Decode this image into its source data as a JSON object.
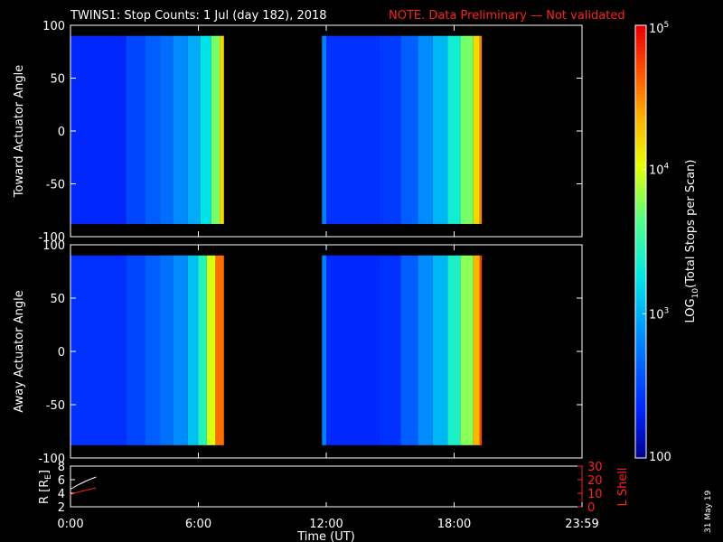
{
  "title": {
    "main": "TWINS1: Stop Counts:  1 Jul (day 182), 2018",
    "note": "NOTE. Data Preliminary — Not validated",
    "note_color": "#ff2020"
  },
  "colorbar": {
    "label_parts": [
      "LOG",
      "10",
      "(Total Stops per Scan)"
    ],
    "ticks": [
      {
        "base": "10",
        "exp": "5",
        "value": 100000
      },
      {
        "base": "10",
        "exp": "4",
        "value": 10000
      },
      {
        "base": "10",
        "exp": "3",
        "value": 1000
      },
      {
        "base": "100",
        "exp": "",
        "value": 100
      }
    ],
    "scale": "log",
    "range": [
      100,
      100000
    ]
  },
  "footer": {
    "date_stamp": "31 May 19"
  },
  "chart_data": [
    {
      "type": "heatmap",
      "title": "",
      "ylabel": "Toward Actuator Angle",
      "xlabel": "",
      "xlim": [
        0,
        24
      ],
      "ylim": [
        -100,
        100
      ],
      "y_ticks": [
        -100,
        -50,
        0,
        50,
        100
      ],
      "data_extent_y": [
        -88,
        90
      ],
      "segments": [
        {
          "t_start": 0.0,
          "t_end": 7.2,
          "columns": [
            {
              "t": 0.0,
              "log10": 2.35
            },
            {
              "t": 2.6,
              "log10": 2.5
            },
            {
              "t": 3.5,
              "log10": 2.62
            },
            {
              "t": 4.2,
              "log10": 2.7
            },
            {
              "t": 4.8,
              "log10": 2.85
            },
            {
              "t": 5.5,
              "log10": 3.0
            },
            {
              "t": 6.1,
              "log10": 3.25
            },
            {
              "t": 6.6,
              "log10": 3.75
            },
            {
              "t": 7.0,
              "log10": 4.2
            }
          ]
        },
        {
          "t_start": 11.8,
          "t_end": 19.3,
          "columns": [
            {
              "t": 11.8,
              "log10": 2.8
            },
            {
              "t": 12.0,
              "log10": 2.4
            },
            {
              "t": 14.5,
              "log10": 2.45
            },
            {
              "t": 15.5,
              "log10": 2.62
            },
            {
              "t": 16.3,
              "log10": 2.85
            },
            {
              "t": 17.0,
              "log10": 3.05
            },
            {
              "t": 17.7,
              "log10": 3.35
            },
            {
              "t": 18.3,
              "log10": 3.75
            },
            {
              "t": 18.9,
              "log10": 4.2
            },
            {
              "t": 19.2,
              "log10": 4.55
            }
          ]
        }
      ]
    },
    {
      "type": "heatmap",
      "title": "",
      "ylabel": "Away Actuator Angle",
      "xlabel": "",
      "xlim": [
        0,
        24
      ],
      "ylim": [
        -100,
        100
      ],
      "y_ticks": [
        -100,
        -50,
        0,
        50,
        100
      ],
      "data_extent_y": [
        -88,
        90
      ],
      "segments": [
        {
          "t_start": 0.0,
          "t_end": 7.2,
          "columns": [
            {
              "t": 0.0,
              "log10": 2.4
            },
            {
              "t": 2.6,
              "log10": 2.5
            },
            {
              "t": 3.5,
              "log10": 2.62
            },
            {
              "t": 4.2,
              "log10": 2.72
            },
            {
              "t": 4.8,
              "log10": 2.85
            },
            {
              "t": 5.5,
              "log10": 3.1
            },
            {
              "t": 6.0,
              "log10": 3.45
            },
            {
              "t": 6.4,
              "log10": 4.0
            },
            {
              "t": 6.8,
              "log10": 4.6
            }
          ]
        },
        {
          "t_start": 11.8,
          "t_end": 19.3,
          "columns": [
            {
              "t": 11.8,
              "log10": 2.8
            },
            {
              "t": 12.0,
              "log10": 2.35
            },
            {
              "t": 14.5,
              "log10": 2.4
            },
            {
              "t": 15.5,
              "log10": 2.62
            },
            {
              "t": 16.3,
              "log10": 2.85
            },
            {
              "t": 17.0,
              "log10": 3.05
            },
            {
              "t": 17.7,
              "log10": 3.4
            },
            {
              "t": 18.3,
              "log10": 3.8
            },
            {
              "t": 18.9,
              "log10": 4.35
            },
            {
              "t": 19.2,
              "log10": 4.75
            }
          ]
        }
      ]
    },
    {
      "type": "line",
      "title": "",
      "ylabel": "R [R",
      "ylabel_sub": "E",
      "ylabel_end": "]",
      "y2label": "L Shell",
      "xlabel": "Time (UT)",
      "xlim": [
        0,
        24
      ],
      "ylim": [
        2,
        8
      ],
      "y_ticks": [
        2,
        4,
        6,
        8
      ],
      "y2lim": [
        0,
        30
      ],
      "y2_ticks": [
        0,
        10,
        20,
        30
      ],
      "x_ticks": [
        {
          "value": 0,
          "label": "0:00"
        },
        {
          "value": 6,
          "label": "6:00"
        },
        {
          "value": 12,
          "label": "12:00"
        },
        {
          "value": 18,
          "label": "18:00"
        },
        {
          "value": 24,
          "label": "23:59"
        }
      ],
      "series": [
        {
          "axis": "left",
          "color": "#ffffff",
          "x": [
            0.0,
            0.4,
            0.8,
            1.2
          ],
          "y": [
            4.6,
            5.3,
            5.9,
            6.4
          ]
        },
        {
          "axis": "right",
          "color": "#ff2020",
          "x": [
            0.0,
            0.4,
            0.8,
            1.2
          ],
          "y": [
            9.0,
            11.0,
            12.5,
            14.0
          ]
        }
      ]
    }
  ]
}
